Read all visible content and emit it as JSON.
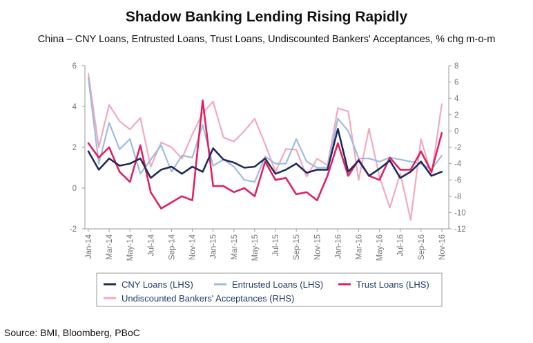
{
  "chart_data": {
    "type": "line",
    "title": "Shadow Banking Lending Rising Rapidly",
    "subtitle": "China – CNY Loans, Entrusted Loans, Trust Loans, Undiscounted Bankers' Acceptances, % chg m-o-m",
    "source": "Source: BMI, Bloomberg, PBoC",
    "x": [
      "Jan-14",
      "Feb-14",
      "Mar-14",
      "Apr-14",
      "May-14",
      "Jun-14",
      "Jul-14",
      "Aug-14",
      "Sep-14",
      "Oct-14",
      "Nov-14",
      "Dec-14",
      "Jan-15",
      "Feb-15",
      "Mar-15",
      "Apr-15",
      "May-15",
      "Jun-15",
      "Jul-15",
      "Aug-15",
      "Sep-15",
      "Oct-15",
      "Nov-15",
      "Dec-15",
      "Jan-16",
      "Feb-16",
      "Mar-16",
      "Apr-16",
      "May-16",
      "Jun-16",
      "Jul-16",
      "Aug-16",
      "Sep-16",
      "Oct-16",
      "Nov-16",
      "Dec-16"
    ],
    "x_tick_labels": [
      "Jan-14",
      "Mar-14",
      "May-14",
      "Jul-14",
      "Sep-14",
      "Nov-14",
      "Jan-15",
      "Mar-15",
      "May-15",
      "Jul-15",
      "Sep-15",
      "Nov-15",
      "Jan-16",
      "Mar-16",
      "May-16",
      "Jul-16",
      "Sep-16",
      "Nov-16"
    ],
    "ylim_left": [
      -2,
      6
    ],
    "yticks_left": [
      -2,
      0,
      2,
      4,
      6
    ],
    "ylim_right": [
      -12,
      8
    ],
    "yticks_right": [
      -12,
      -10,
      -8,
      -6,
      -4,
      -2,
      0,
      2,
      4,
      6,
      8
    ],
    "grid": false,
    "legend_position": "bottom",
    "series": [
      {
        "name": "CNY Loans (LHS)",
        "axis": "left",
        "color": "#1f2a5e",
        "width": 2.6,
        "values": [
          1.8,
          0.9,
          1.45,
          1.1,
          1.2,
          1.45,
          0.5,
          0.9,
          1.05,
          0.7,
          1.05,
          0.8,
          1.95,
          1.4,
          1.25,
          1.0,
          1.05,
          1.45,
          0.7,
          0.9,
          1.2,
          0.75,
          0.9,
          0.9,
          2.9,
          0.8,
          1.35,
          0.6,
          0.95,
          1.35,
          0.5,
          0.8,
          1.3,
          0.6,
          0.8,
          null
        ]
      },
      {
        "name": "Entrusted Loans (LHS)",
        "axis": "left",
        "color": "#9dbbe0",
        "width": 2.2,
        "values": [
          5.4,
          1.2,
          3.2,
          1.9,
          2.4,
          0.7,
          1.4,
          2.1,
          0.8,
          1.6,
          1.5,
          3.1,
          1.1,
          1.4,
          1.05,
          0.4,
          0.3,
          1.55,
          1.2,
          1.2,
          2.4,
          1.3,
          1.0,
          1.0,
          3.4,
          2.8,
          1.45,
          1.45,
          1.3,
          1.5,
          1.4,
          1.3,
          1.2,
          0.9,
          1.6,
          null
        ]
      },
      {
        "name": "Trust Loans (LHS)",
        "axis": "left",
        "color": "#e0215e",
        "width": 2.6,
        "values": [
          2.2,
          1.5,
          2.0,
          0.8,
          0.3,
          2.1,
          -0.2,
          -1.0,
          -0.7,
          -0.4,
          -0.6,
          4.3,
          0.1,
          0.1,
          -0.2,
          0.0,
          -0.4,
          1.3,
          0.4,
          0.5,
          -0.3,
          -0.2,
          -0.6,
          0.6,
          2.2,
          0.6,
          1.4,
          0.6,
          0.4,
          1.5,
          0.9,
          0.9,
          1.8,
          0.8,
          2.7,
          null
        ]
      },
      {
        "name": "Undiscounted Bankers' Acceptances (RHS)",
        "axis": "right",
        "color": "#f2a9c0",
        "width": 2.2,
        "values": [
          7.0,
          -2.0,
          3.2,
          1.2,
          0.2,
          1.6,
          -4.4,
          -1.4,
          -2.0,
          -3.4,
          -0.4,
          2.2,
          3.6,
          -0.8,
          -1.3,
          0.0,
          1.5,
          -1.6,
          -5.0,
          -2.2,
          -2.3,
          -5.6,
          -3.4,
          -4.2,
          2.8,
          2.4,
          -6.0,
          0.3,
          -5.6,
          -9.4,
          -5.2,
          -10.9,
          -1.0,
          -5.4,
          3.3,
          null
        ]
      }
    ]
  }
}
